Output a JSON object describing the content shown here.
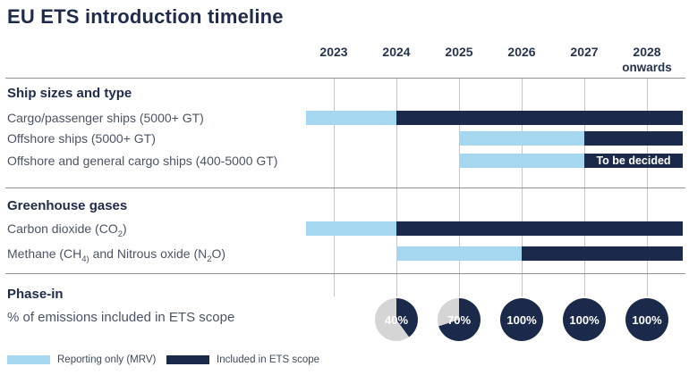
{
  "title": "EU ETS introduction timeline",
  "colors": {
    "title_text": "#1e2b49",
    "heading_text": "#1e2b49",
    "body_text": "#4a5465",
    "year_text": "#25344f",
    "reporting": "#a5d8f0",
    "ets": "#1b2a4a",
    "pie_remainder": "#d5d5d5",
    "grid_line": "#c4c7ca",
    "rule_line": "#8f9296",
    "note_text": "#ffffff",
    "background": "#ffffff"
  },
  "chart_data": {
    "type": "gantt-timeline",
    "title": "EU ETS introduction timeline",
    "columns": [
      {
        "year": 2023,
        "label": "2023"
      },
      {
        "year": 2024,
        "label": "2024"
      },
      {
        "year": 2025,
        "label": "2025"
      },
      {
        "year": 2026,
        "label": "2026"
      },
      {
        "year": 2027,
        "label": "2027"
      },
      {
        "year": 2028,
        "label": "2028",
        "sublabel": "onwards"
      }
    ],
    "legend": [
      {
        "key": "reporting",
        "label": "Reporting only (MRV)",
        "color": "#a5d8f0"
      },
      {
        "key": "ets",
        "label": "Included in ETS scope",
        "color": "#1b2a4a"
      }
    ],
    "sections": [
      {
        "heading": "Ship sizes and type",
        "rows": [
          {
            "label": "Cargo/passenger ships (5000+ GT)",
            "label_parts": [
              {
                "text": "Cargo/passenger ships (5000+ GT)"
              }
            ],
            "segments": [
              {
                "type": "reporting",
                "from": "start",
                "to": 2024
              },
              {
                "type": "ets",
                "from": 2024,
                "to": "end"
              }
            ]
          },
          {
            "label": "Offshore ships (5000+ GT)",
            "label_parts": [
              {
                "text": "Offshore ships (5000+ GT)"
              }
            ],
            "segments": [
              {
                "type": "reporting",
                "from": 2025,
                "to": 2027
              },
              {
                "type": "ets",
                "from": 2027,
                "to": "end"
              }
            ]
          },
          {
            "label": "Offshore and general cargo ships (400-5000 GT)",
            "label_parts": [
              {
                "text": "Offshore and general cargo ships (400-5000 GT)"
              }
            ],
            "segments": [
              {
                "type": "reporting",
                "from": 2025,
                "to": 2027
              },
              {
                "type": "ets",
                "from": 2027,
                "to": "end",
                "note": "To be decided"
              }
            ]
          }
        ]
      },
      {
        "heading": "Greenhouse gases",
        "rows": [
          {
            "label": "Carbon dioxide (CO2)",
            "label_parts": [
              {
                "text": "Carbon dioxide (CO"
              },
              {
                "text": "2",
                "sub": true
              },
              {
                "text": ")"
              }
            ],
            "segments": [
              {
                "type": "reporting",
                "from": "start",
                "to": 2024
              },
              {
                "type": "ets",
                "from": 2024,
                "to": "end"
              }
            ]
          },
          {
            "label": "Methane (CH4) and Nitrous oxide (N2O)",
            "label_parts": [
              {
                "text": "Methane (CH"
              },
              {
                "text": "4)",
                "sub": true
              },
              {
                "text": " and Nitrous oxide (N"
              },
              {
                "text": "2",
                "sub": true
              },
              {
                "text": "O)"
              }
            ],
            "segments": [
              {
                "type": "reporting",
                "from": 2024,
                "to": 2026
              },
              {
                "type": "ets",
                "from": 2026,
                "to": "end"
              }
            ]
          }
        ]
      },
      {
        "heading": "Phase-in",
        "subheading": "% of emissions included in ETS scope",
        "pies": [
          {
            "year": 2024,
            "percent": 40,
            "label": "40%"
          },
          {
            "year": 2025,
            "percent": 70,
            "label": "70%"
          },
          {
            "year": 2026,
            "percent": 100,
            "label": "100%"
          },
          {
            "year": 2027,
            "percent": 100,
            "label": "100%"
          },
          {
            "year": 2028,
            "percent": 100,
            "label": "100%"
          }
        ]
      }
    ]
  }
}
